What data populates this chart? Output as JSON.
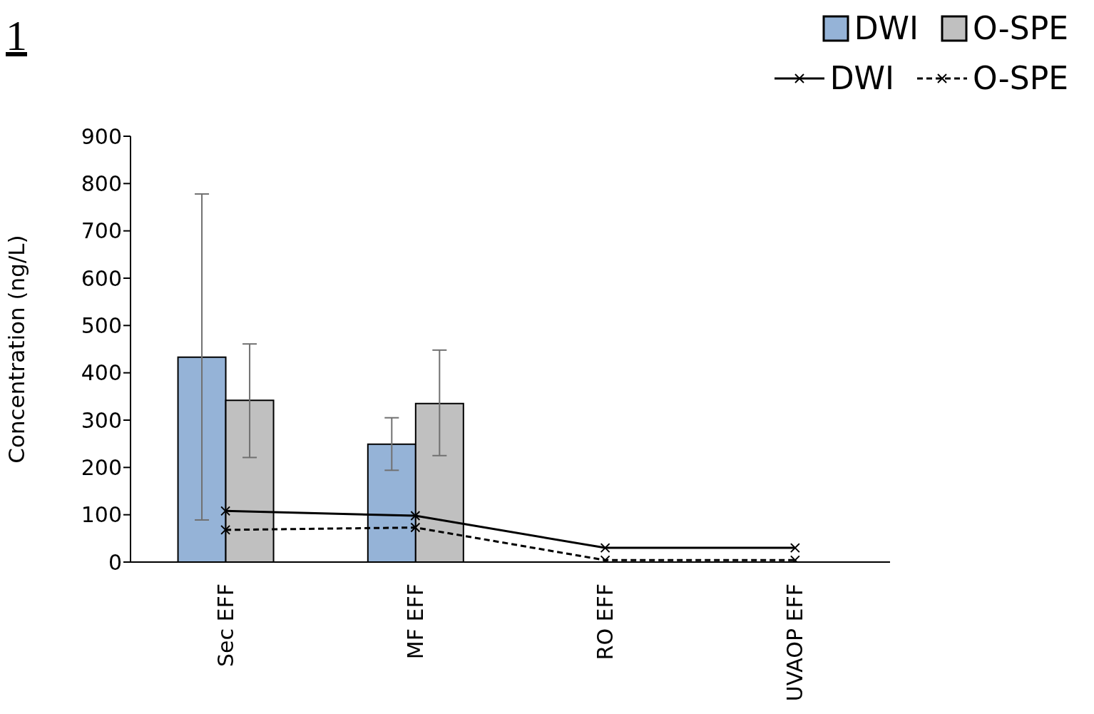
{
  "chart_data": {
    "type": "bar",
    "ylabel": "Concentration (ng/L)",
    "annotations": [
      "1"
    ],
    "categories": [
      "Sec EFF",
      "MF EFF",
      "RO EFF",
      "UVAOP EFF"
    ],
    "series": [
      {
        "name": "DWI",
        "color": "#95b3d7",
        "values": [
          433,
          249,
          null,
          null
        ],
        "errors": [
          [
            89,
            778
          ],
          [
            194,
            305
          ],
          null,
          null
        ]
      },
      {
        "name": "O-SPE",
        "color": "#c0c0c0",
        "values": [
          342,
          335,
          null,
          null
        ],
        "errors": [
          [
            221,
            461
          ],
          [
            225,
            448
          ],
          null,
          null
        ]
      },
      {
        "name": "DWI",
        "type": "line",
        "color": "#000000",
        "line_style": "solid",
        "marker": "cross",
        "values": [
          108,
          98,
          30,
          30
        ]
      },
      {
        "name": "O-SPE",
        "type": "line",
        "color": "#000000",
        "line_style": "dashed",
        "marker": "cross",
        "values": [
          68,
          73,
          4,
          4
        ]
      }
    ],
    "ylim": [
      0,
      900
    ],
    "yticks": [
      0,
      100,
      200,
      300,
      400,
      500,
      600,
      700,
      800,
      900
    ],
    "grid": false,
    "legend": "top right"
  }
}
